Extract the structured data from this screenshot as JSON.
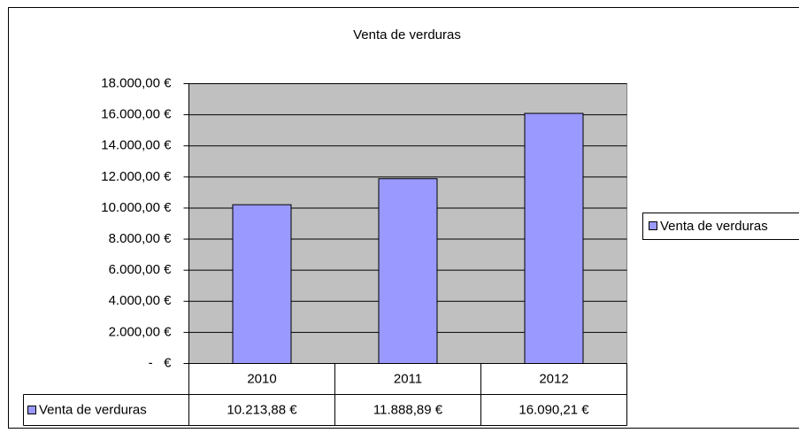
{
  "chart_data": {
    "type": "bar",
    "title": "Venta de verduras",
    "categories": [
      "2010",
      "2011",
      "2012"
    ],
    "series": [
      {
        "name": "Venta de verduras",
        "color": "#9999ff",
        "values": [
          10213.88,
          11888.89,
          16090.21
        ],
        "value_labels": [
          "10.213,88 €",
          "11.888,89 €",
          "16.090,21 €"
        ]
      }
    ],
    "ylim": [
      0,
      18000
    ],
    "yticks": [
      {
        "value": 0,
        "label": "-   €"
      },
      {
        "value": 2000,
        "label": "2.000,00 €"
      },
      {
        "value": 4000,
        "label": "4.000,00 €"
      },
      {
        "value": 6000,
        "label": "6.000,00 €"
      },
      {
        "value": 8000,
        "label": "8.000,00 €"
      },
      {
        "value": 10000,
        "label": "10.000,00 €"
      },
      {
        "value": 12000,
        "label": "12.000,00 €"
      },
      {
        "value": 14000,
        "label": "14.000,00 €"
      },
      {
        "value": 16000,
        "label": "16.000,00 €"
      },
      {
        "value": 18000,
        "label": "18.000,00 €"
      }
    ],
    "grid": true,
    "legend": "right",
    "plot_background": "#c0c0c0"
  }
}
